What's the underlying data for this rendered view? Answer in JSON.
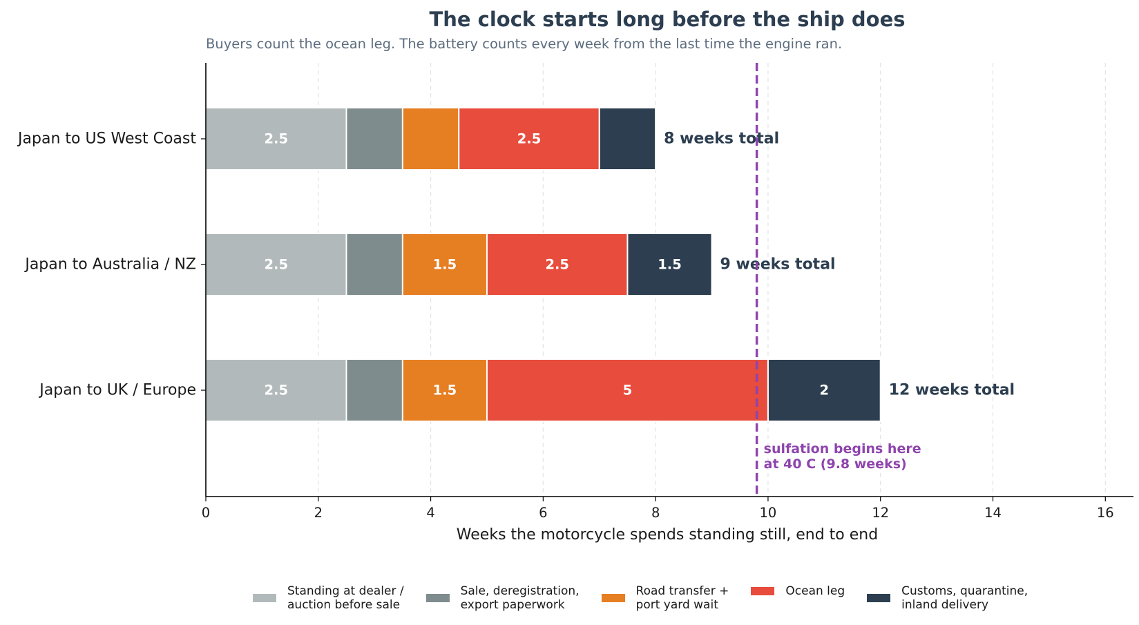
{
  "chart_data": {
    "type": "bar",
    "orientation": "horizontal",
    "stacked": true,
    "title": "The clock starts long before the ship does",
    "subtitle": "Buyers count the ocean leg. The battery counts every week from the last time the engine ran.",
    "xlabel": "Weeks the motorcycle spends standing still, end to end",
    "ylabel": "",
    "xlim": [
      0,
      16.5
    ],
    "xticks": [
      0,
      2,
      4,
      6,
      8,
      10,
      12,
      14,
      16
    ],
    "grid": "vertical dashed",
    "categories": [
      "Japan to US West Coast",
      "Japan to Australia / NZ",
      "Japan to UK / Europe"
    ],
    "series": [
      {
        "name": "Standing at dealer /\nauction before sale",
        "color": "#b2b9ba",
        "values": [
          2.5,
          2.5,
          2.5
        ],
        "labels": [
          "2.5",
          "2.5",
          "2.5"
        ]
      },
      {
        "name": "Sale, deregistration,\nexport paperwork",
        "color": "#7f8c8d",
        "values": [
          1,
          1,
          1
        ],
        "labels": [
          "",
          "",
          ""
        ]
      },
      {
        "name": "Road transfer +\nport yard wait",
        "color": "#e67e22",
        "values": [
          1,
          1.5,
          1.5
        ],
        "labels": [
          "",
          "1.5",
          "1.5"
        ]
      },
      {
        "name": "Ocean leg",
        "color": "#e74c3c",
        "values": [
          2.5,
          2.5,
          5
        ],
        "labels": [
          "2.5",
          "2.5",
          "5"
        ]
      },
      {
        "name": "Customs, quarantine,\ninland delivery",
        "color": "#2c3e50",
        "values": [
          1,
          1.5,
          2
        ],
        "labels": [
          "",
          "1.5",
          "2"
        ]
      }
    ],
    "totals": [
      8,
      9,
      12
    ],
    "total_labels": [
      "8 weeks total",
      "9 weeks total",
      "12 weeks total"
    ],
    "reference_line": {
      "x": 9.8,
      "color": "#8e44ad",
      "label_line1": "sulfation begins here",
      "label_line2": "at 40 C (9.8 weeks)"
    },
    "legend_position": "bottom-center"
  }
}
